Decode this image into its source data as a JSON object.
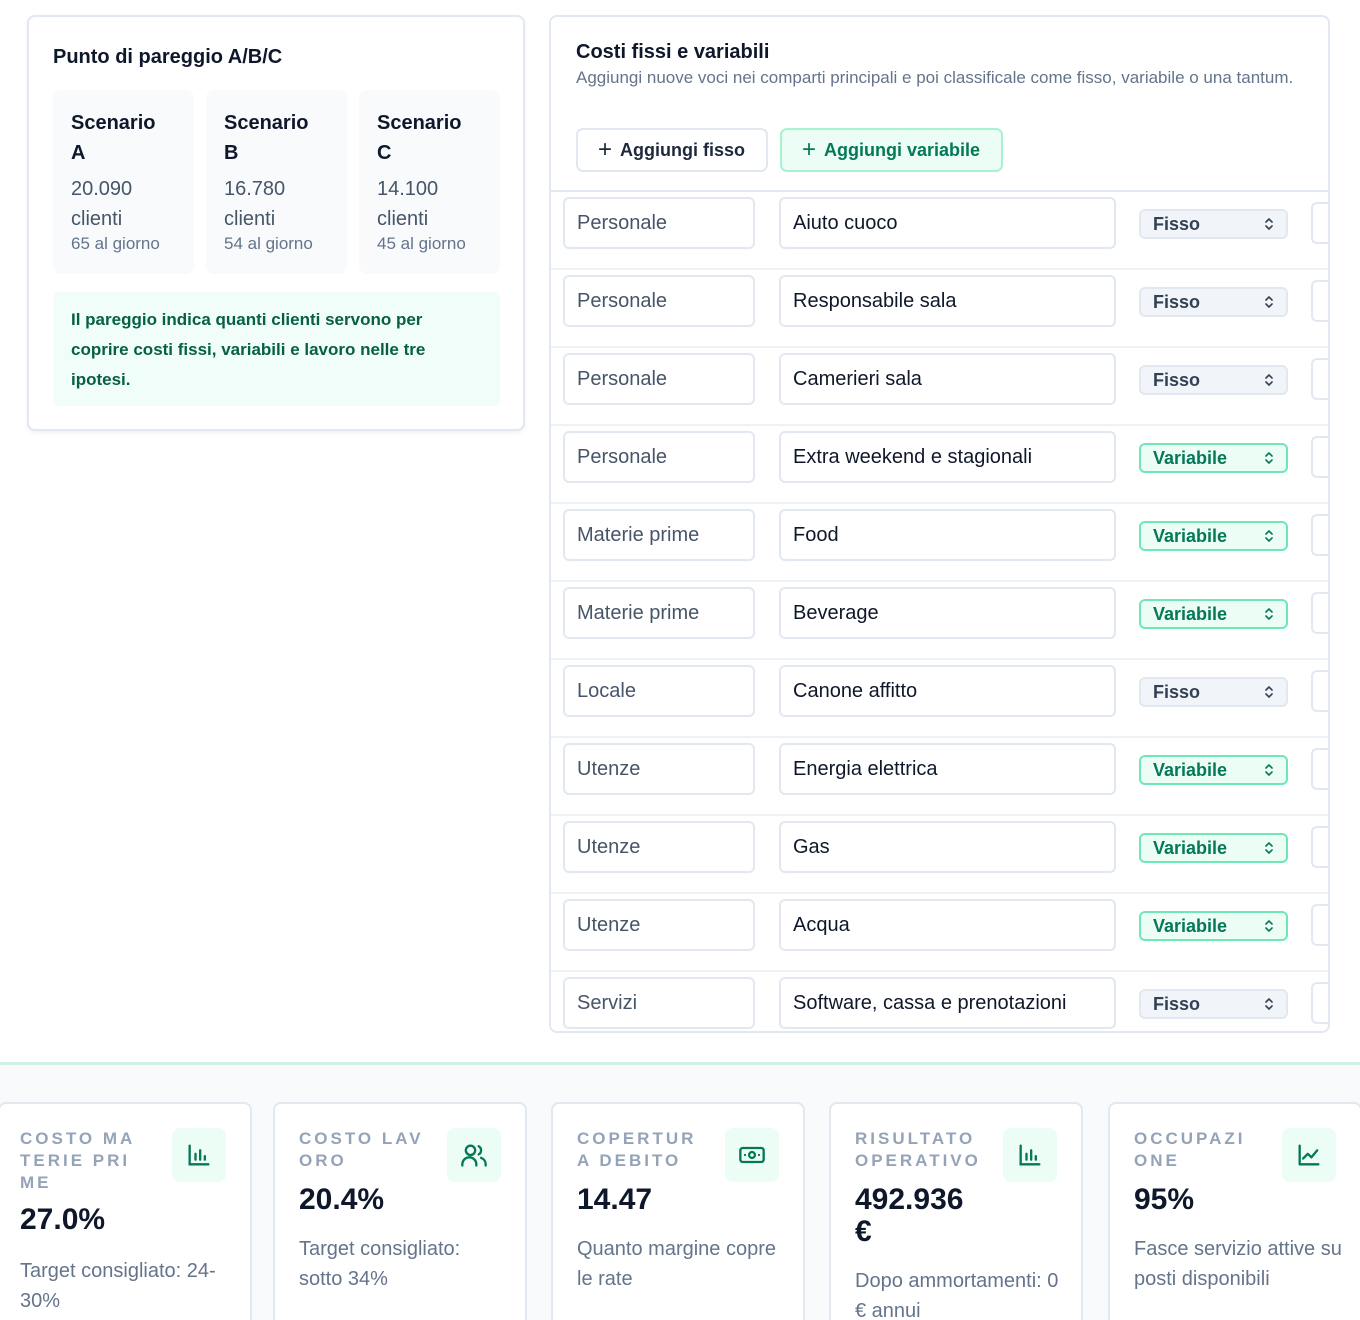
{
  "breakeven": {
    "title": "Punto di pareggio A/B/C",
    "scenarios": [
      {
        "name": "Scenario A",
        "clients": "20.090 clienti",
        "per_day": "65 al giorno"
      },
      {
        "name": "Scenario B",
        "clients": "16.780 clienti",
        "per_day": "54 al giorno"
      },
      {
        "name": "Scenario C",
        "clients": "14.100 clienti",
        "per_day": "45 al giorno"
      }
    ],
    "note": "Il pareggio indica quanti clienti servono per coprire costi fissi, variabili e lavoro nelle tre ipotesi."
  },
  "costs": {
    "title": "Costi fissi e variabili",
    "subtitle": "Aggiungi nuove voci nei comparti principali e poi classificale come fisso, variabile o una tantum.",
    "add_fixed_label": "Aggiungi fisso",
    "add_variable_label": "Aggiungi variabile",
    "rows": [
      {
        "category": "Personale",
        "name": "Aiuto cuoco",
        "type": "Fisso"
      },
      {
        "category": "Personale",
        "name": "Responsabile sala",
        "type": "Fisso"
      },
      {
        "category": "Personale",
        "name": "Camerieri sala",
        "type": "Fisso"
      },
      {
        "category": "Personale",
        "name": "Extra weekend e stagionali",
        "type": "Variabile"
      },
      {
        "category": "Materie prime",
        "name": "Food",
        "type": "Variabile"
      },
      {
        "category": "Materie prime",
        "name": "Beverage",
        "type": "Variabile"
      },
      {
        "category": "Locale",
        "name": "Canone affitto",
        "type": "Fisso"
      },
      {
        "category": "Utenze",
        "name": "Energia elettrica",
        "type": "Variabile"
      },
      {
        "category": "Utenze",
        "name": "Gas",
        "type": "Variabile"
      },
      {
        "category": "Utenze",
        "name": "Acqua",
        "type": "Variabile"
      },
      {
        "category": "Servizi",
        "name": "Software, cassa e prenotazioni",
        "type": "Fisso"
      }
    ]
  },
  "kpis": [
    {
      "label": "COSTO MATERIE PRIME",
      "value": "27.0%",
      "desc": "Target consigliato: 24-30%",
      "icon": "bar-chart-icon"
    },
    {
      "label": "COSTO LAVORO",
      "value": "20.4%",
      "desc": "Target consigliato: sotto 34%",
      "icon": "users-icon"
    },
    {
      "label": "COPERTURA DEBITO",
      "value": "14.47",
      "desc": "Quanto margine copre le rate",
      "icon": "banknote-icon"
    },
    {
      "label": "RISULTATO OPERATIVO",
      "value": "492.936 €",
      "desc": "Dopo ammortamenti: 0 € annui",
      "icon": "bar-chart-icon"
    },
    {
      "label": "OCCUPAZIONE",
      "value": "95%",
      "desc": "Fasce servizio attive su posti disponibili",
      "icon": "trend-chart-icon"
    }
  ],
  "colors": {
    "accent": "#047857",
    "accent_bg": "#ecfdf5",
    "border": "#e2e8f0",
    "muted": "#64748b"
  }
}
